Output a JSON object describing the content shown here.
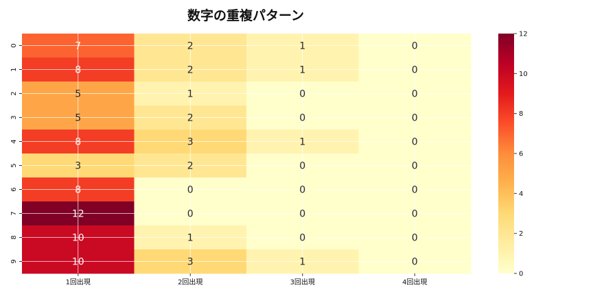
{
  "chart_data": {
    "type": "heatmap",
    "title": "数字の重複パターン",
    "x_categories": [
      "1回出現",
      "2回出現",
      "3回出現",
      "4回出現"
    ],
    "y_categories": [
      "0",
      "1",
      "2",
      "3",
      "4",
      "5",
      "6",
      "7",
      "8",
      "9"
    ],
    "values": [
      [
        7,
        2,
        1,
        0
      ],
      [
        8,
        2,
        1,
        0
      ],
      [
        5,
        1,
        0,
        0
      ],
      [
        5,
        2,
        0,
        0
      ],
      [
        8,
        3,
        1,
        0
      ],
      [
        3,
        2,
        0,
        0
      ],
      [
        8,
        0,
        0,
        0
      ],
      [
        12,
        0,
        0,
        0
      ],
      [
        10,
        1,
        0,
        0
      ],
      [
        10,
        3,
        1,
        0
      ]
    ],
    "colorbar": {
      "min": 0,
      "max": 12,
      "ticks": [
        0,
        2,
        4,
        6,
        8,
        10,
        12
      ]
    },
    "colormap": "YlOrRd",
    "annotated": true,
    "grid": true
  }
}
